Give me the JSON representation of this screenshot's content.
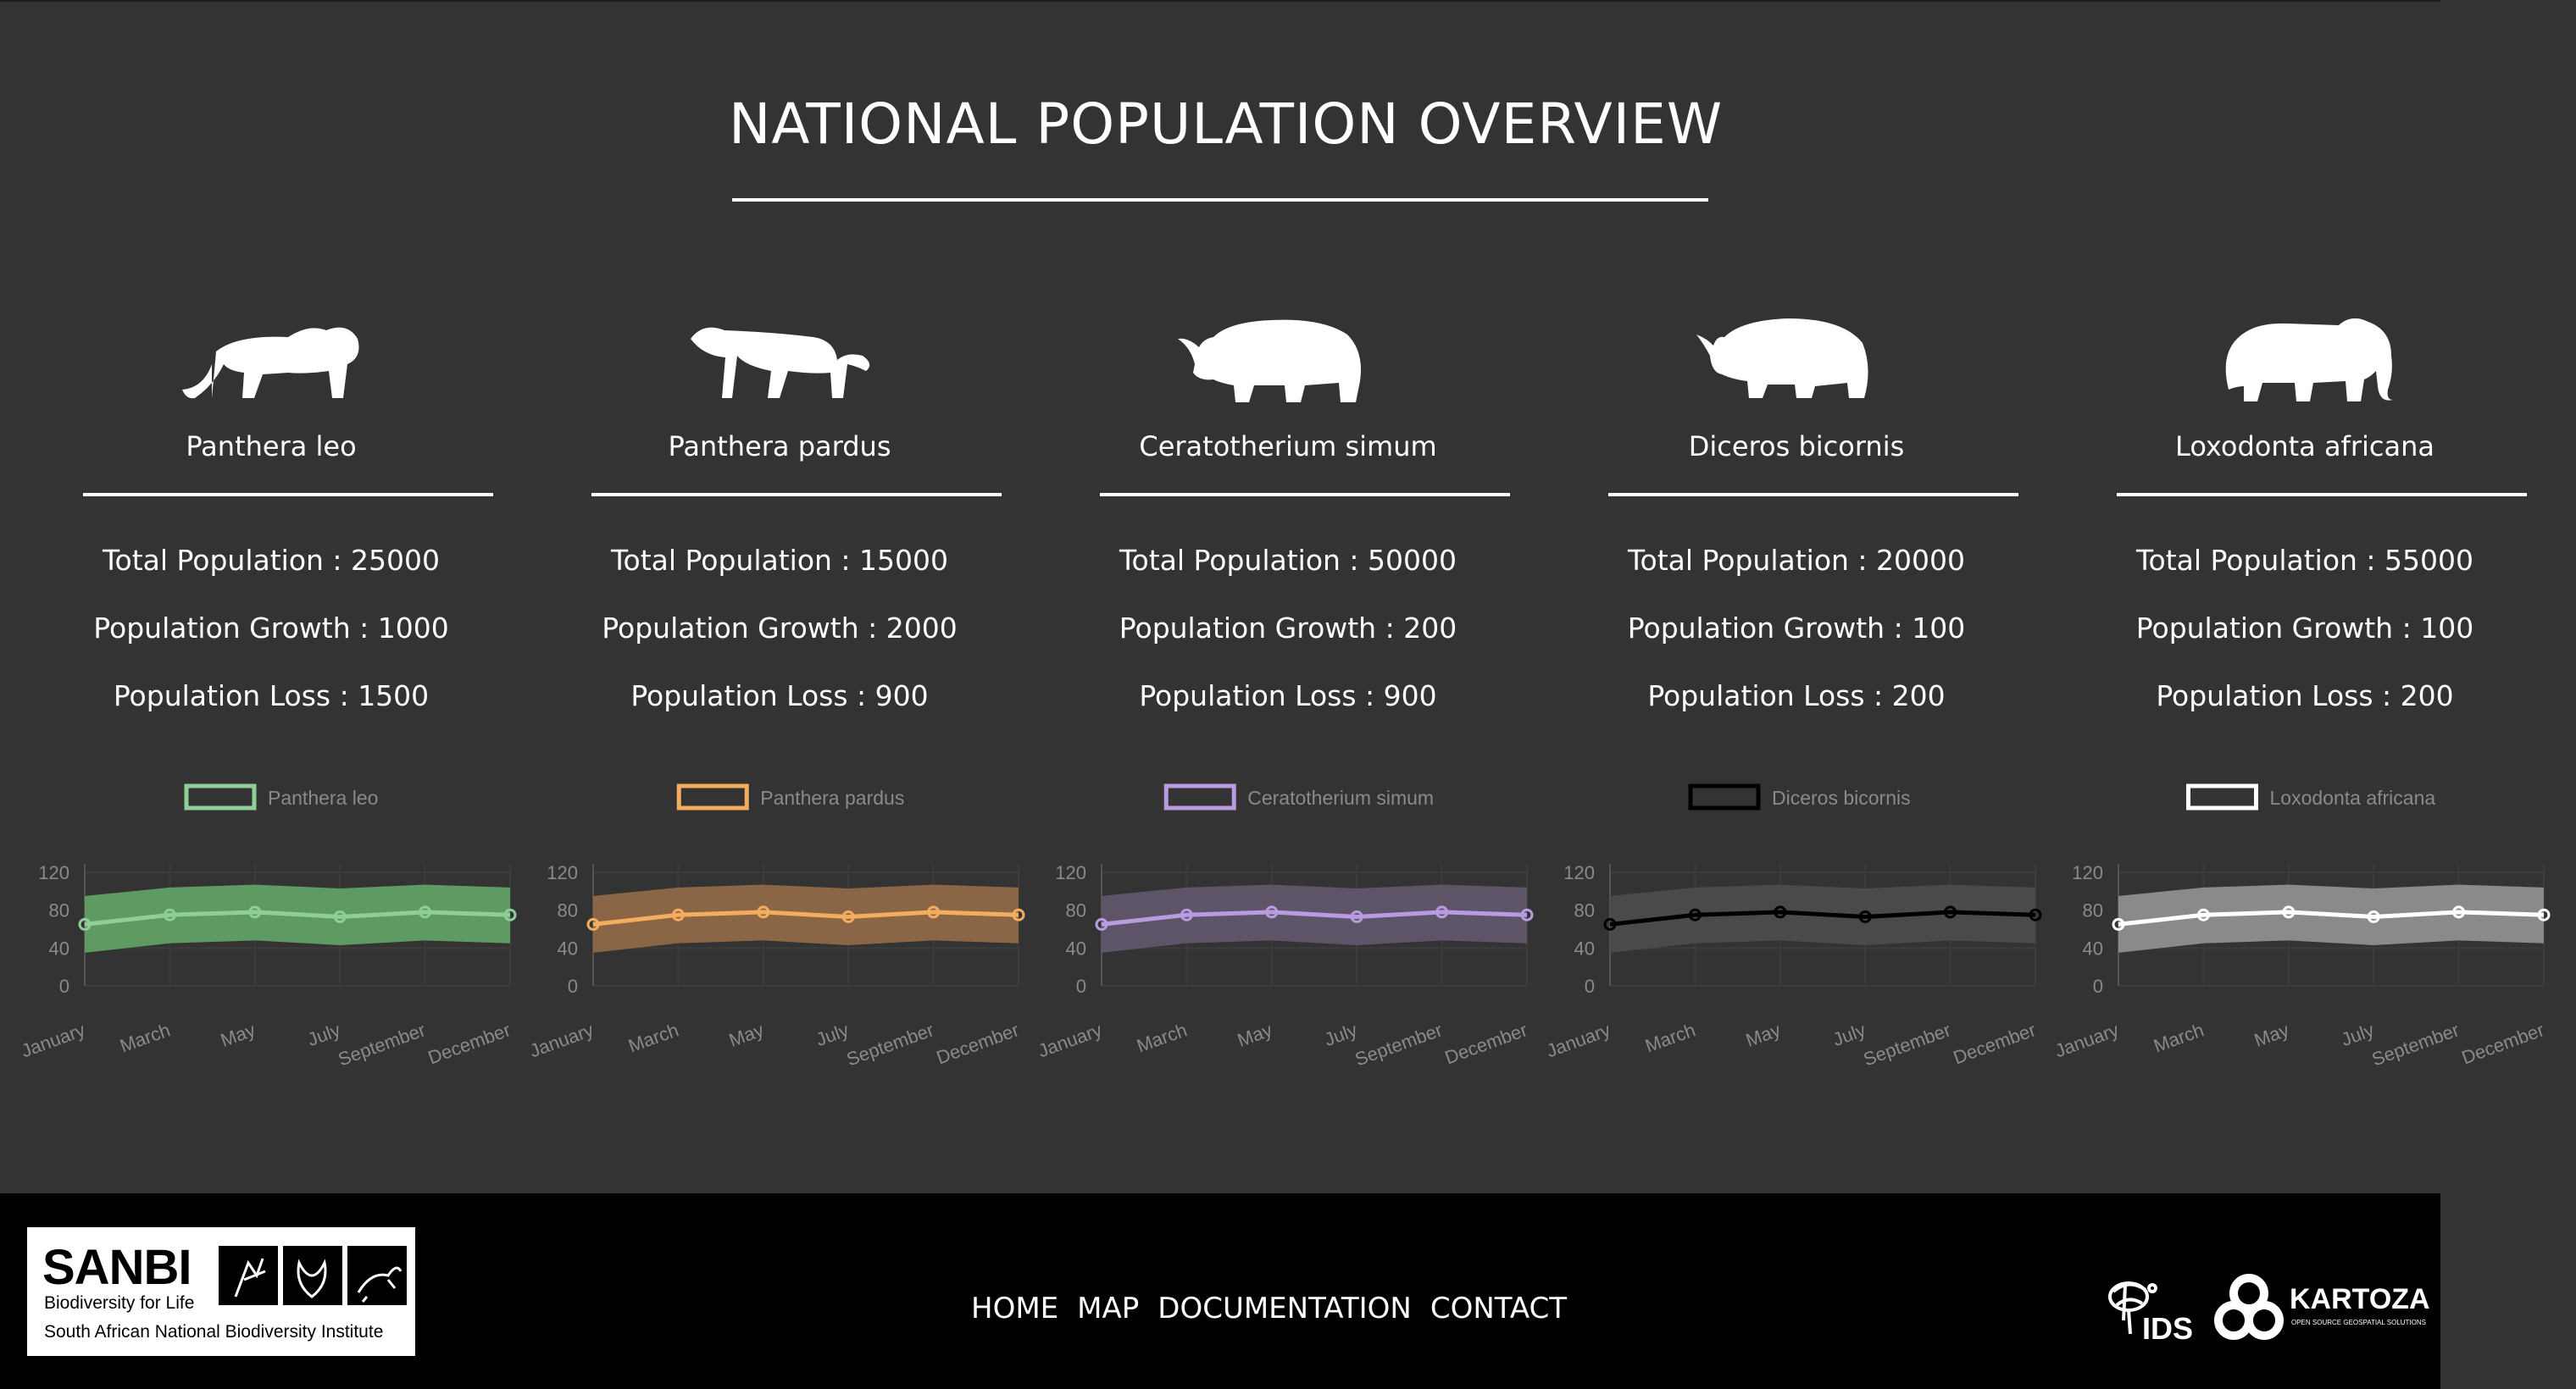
{
  "page": {
    "title": "NATIONAL POPULATION OVERVIEW",
    "total_label": "Total Population : ",
    "growth_label": "Population Growth : ",
    "loss_label": "Population Loss : "
  },
  "species": [
    {
      "name": "Panthera leo",
      "silhouette": "lion-icon",
      "total": "25000",
      "growth": "1000",
      "loss": "1500",
      "color": "#8fce96",
      "band": "#5f9a62"
    },
    {
      "name": "Panthera pardus",
      "silhouette": "leopard-icon",
      "total": "15000",
      "growth": "2000",
      "loss": "900",
      "color": "#f4ad5f",
      "band": "#8a6646"
    },
    {
      "name": "Ceratotherium simum",
      "silhouette": "white-rhino-icon",
      "total": "50000",
      "growth": "200",
      "loss": "900",
      "color": "#b89be0",
      "band": "#5e5468"
    },
    {
      "name": "Diceros bicornis",
      "silhouette": "black-rhino-icon",
      "total": "20000",
      "growth": "100",
      "loss": "200",
      "color": "#000000",
      "band": "#4a4a4a"
    },
    {
      "name": "Loxodonta africana",
      "silhouette": "elephant-icon",
      "total": "55000",
      "growth": "100",
      "loss": "200",
      "color": "#ffffff",
      "band": "#8a8a8a"
    }
  ],
  "chart_data": {
    "type": "line",
    "categories": [
      "January",
      "March",
      "May",
      "July",
      "September",
      "December"
    ],
    "ylim": [
      0,
      120
    ],
    "yticks": [
      0,
      40,
      80,
      120
    ],
    "series_values": [
      65,
      75,
      78,
      73,
      78,
      75
    ],
    "band_upper": [
      95,
      104,
      107,
      103,
      107,
      104
    ],
    "band_lower": [
      35,
      45,
      48,
      43,
      48,
      45
    ],
    "legend_position": "top"
  },
  "nav": [
    "HOME",
    "MAP",
    "DOCUMENTATION",
    "CONTACT"
  ],
  "footer": {
    "sanbi_brand": "SANBI",
    "sanbi_tagline": "Biodiversity for Life",
    "sanbi_institute": "South African National Biodiversity Institute",
    "ids_label": "IDS",
    "kartoza_label": "KARTOZA",
    "kartoza_sub": "OPEN SOURCE GEOSPATIAL SOLUTIONS"
  }
}
